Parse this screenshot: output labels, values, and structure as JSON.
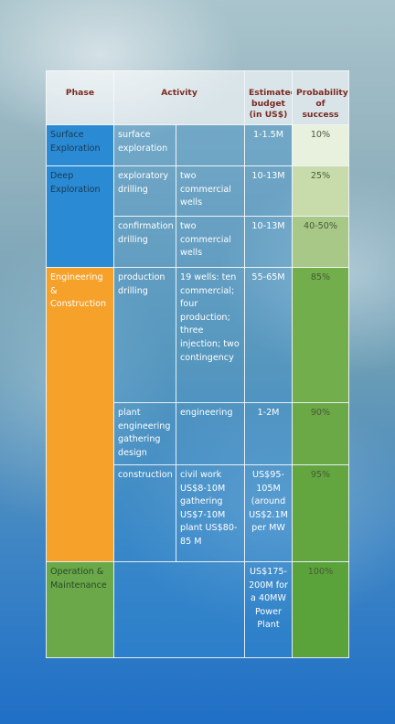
{
  "table": {
    "headers": {
      "phase": "Phase",
      "activity": "Activity",
      "budget": "Estimated budget (in US$)",
      "probability": "Probability of success"
    },
    "rows": [
      {
        "phase": "Surface Exploration",
        "activity": "surface exploration",
        "detail": "",
        "budget": "1-1.5M",
        "probability": "10%"
      },
      {
        "phase": "Deep Exploration",
        "activity": "exploratory drilling",
        "detail": "two commercial wells",
        "budget": "10-13M",
        "probability": "25%"
      },
      {
        "phase": "",
        "activity": "confirmation drilling",
        "detail": "two commercial wells",
        "budget": "10-13M",
        "probability": "40-50%"
      },
      {
        "phase": "Engineering & Construction",
        "activity": "production drilling",
        "detail": "19 wells: ten commercial; four production; three injection; two contingency",
        "budget": "55-65M",
        "probability": "85%"
      },
      {
        "phase": "",
        "activity": "plant engineering gathering design",
        "detail": "engineering",
        "budget": "1-2M",
        "probability": "90%"
      },
      {
        "phase": "",
        "activity": "construction",
        "detail": "civil work US$8-10M gathering US$7-10M plant US$80-85 M",
        "budget": "US$95-105M (around US$2.1M per MW",
        "probability": "95%"
      },
      {
        "phase": "Operation & Maintenance",
        "activity": "",
        "detail": "",
        "budget": "US$175-200M for a 40MW Power Plant",
        "probability": "100%"
      }
    ]
  },
  "colors": {
    "blue_phase": "#2a8ad3",
    "orange_phase": "#f5a12a",
    "green_phase": "#6aa84a",
    "header_text": "#7b2a20"
  }
}
